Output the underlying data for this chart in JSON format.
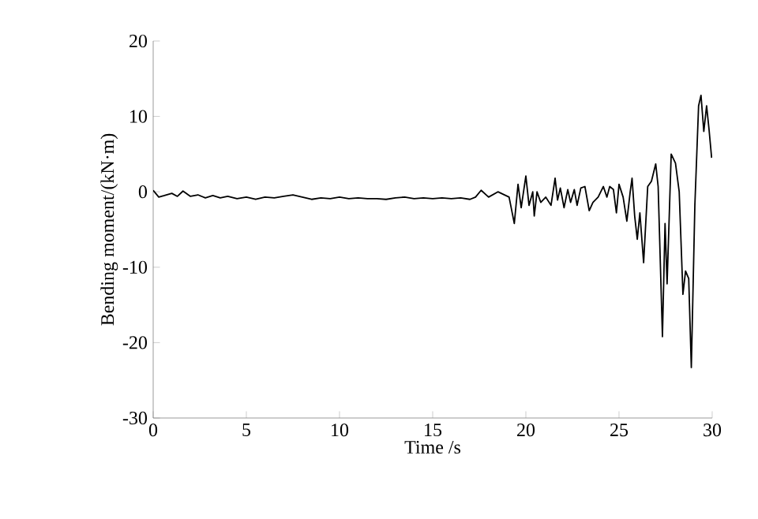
{
  "chart_data": {
    "type": "line",
    "xlabel": "Time /s",
    "ylabel": "Bending moment/(kN·m)",
    "xlim": [
      0,
      30
    ],
    "ylim": [
      -30,
      20
    ],
    "xticks": [
      0,
      5,
      10,
      15,
      20,
      25,
      30
    ],
    "yticks": [
      -30,
      -20,
      -10,
      0,
      10,
      20
    ],
    "grid": false,
    "series": [
      {
        "color": "#000000",
        "x": [
          0,
          0.3,
          0.6,
          1.0,
          1.3,
          1.6,
          2.0,
          2.4,
          2.8,
          3.2,
          3.6,
          4.0,
          4.5,
          5.0,
          5.5,
          6.0,
          6.5,
          7.0,
          7.5,
          8.0,
          8.5,
          9.0,
          9.5,
          10.0,
          10.5,
          11.0,
          11.5,
          12.0,
          12.5,
          13.0,
          13.5,
          14.0,
          14.5,
          15.0,
          15.5,
          16.0,
          16.5,
          17.0,
          17.3,
          17.6,
          18.0,
          18.5,
          19.1,
          19.38,
          19.58,
          19.75,
          20.0,
          20.17,
          20.37,
          20.45,
          20.6,
          20.8,
          21.07,
          21.35,
          21.57,
          21.7,
          21.85,
          22.05,
          22.25,
          22.4,
          22.6,
          22.75,
          22.95,
          23.17,
          23.4,
          23.6,
          23.88,
          24.16,
          24.35,
          24.5,
          24.7,
          24.86,
          25.0,
          25.22,
          25.42,
          25.6,
          25.7,
          25.84,
          25.98,
          26.12,
          26.32,
          26.54,
          26.74,
          26.97,
          27.1,
          27.33,
          27.47,
          27.58,
          27.8,
          28.03,
          28.23,
          28.43,
          28.57,
          28.74,
          28.88,
          29.07,
          29.27,
          29.4,
          29.55,
          29.7,
          29.83,
          29.97
        ],
        "values": [
          0.2,
          -0.7,
          -0.5,
          -0.2,
          -0.6,
          0.1,
          -0.6,
          -0.4,
          -0.8,
          -0.5,
          -0.8,
          -0.6,
          -0.9,
          -0.7,
          -1.0,
          -0.7,
          -0.8,
          -0.6,
          -0.4,
          -0.7,
          -1.0,
          -0.8,
          -0.9,
          -0.7,
          -0.9,
          -0.8,
          -0.9,
          -0.9,
          -1.0,
          -0.8,
          -0.7,
          -0.9,
          -0.8,
          -0.9,
          -0.8,
          -0.9,
          -0.8,
          -1.0,
          -0.7,
          0.2,
          -0.7,
          0,
          -0.7,
          -4.2,
          1.0,
          -2.1,
          2.1,
          -1.8,
          0,
          -3.2,
          0,
          -1.4,
          -0.7,
          -1.8,
          1.8,
          -1.1,
          0.5,
          -2.1,
          0.3,
          -1.4,
          0.3,
          -1.8,
          0.5,
          0.7,
          -2.5,
          -1.4,
          -0.7,
          0.7,
          -0.7,
          0.7,
          0.3,
          -2.8,
          1.0,
          -0.7,
          -3.9,
          0,
          1.8,
          -3.2,
          -6.3,
          -2.8,
          -9.4,
          0.7,
          1.4,
          3.7,
          0.7,
          -19.2,
          -4.2,
          -12.2,
          5.0,
          3.8,
          0,
          -13.6,
          -10.5,
          -11.5,
          -23.3,
          -1.8,
          11.4,
          12.8,
          8.0,
          11.4,
          8.3,
          4.5
        ]
      }
    ]
  }
}
